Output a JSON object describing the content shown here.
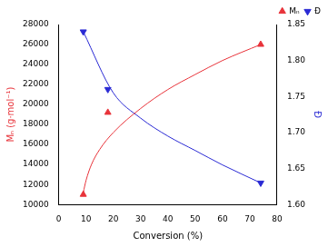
{
  "chart_data": {
    "type": "scatter",
    "x_label": "Conversion (%)",
    "y_label": "Mₙ (g·mol⁻¹)",
    "y2_label": "Đ",
    "xlim": [
      0,
      80
    ],
    "xticks": [
      0,
      10,
      20,
      30,
      40,
      50,
      60,
      70,
      80
    ],
    "ylim": [
      10000,
      28000
    ],
    "yticks": [
      10000,
      12000,
      14000,
      16000,
      18000,
      20000,
      22000,
      24000,
      26000,
      28000
    ],
    "y2lim": [
      1.6,
      1.85
    ],
    "y2ticks": [
      {
        "value": 1.6,
        "label": "1.60"
      },
      1.65,
      {
        "value": 1.7,
        "label": "1.70"
      },
      1.75,
      {
        "value": 1.8,
        "label": "1.80"
      },
      1.85
    ],
    "grid": false,
    "legend": "upper right",
    "series": [
      {
        "name": "Mₙ",
        "color": "#e8333a",
        "marker": "triangle_up",
        "axis": "y",
        "x": [
          9,
          18,
          74
        ],
        "values": [
          11000,
          19200,
          26000
        ],
        "curve": {
          "x": [
            9,
            10,
            12,
            15,
            20,
            30,
            40,
            50,
            60,
            74
          ],
          "values": [
            11200,
            12400,
            14000,
            15500,
            17200,
            19600,
            21500,
            23000,
            24400,
            26000
          ]
        }
      },
      {
        "name": "Đ",
        "color": "#2a2ad4",
        "marker": "triangle_down",
        "axis": "y2",
        "x": [
          9,
          18,
          74
        ],
        "values": [
          1.84,
          1.76,
          1.63
        ],
        "curve": {
          "x": [
            9,
            20,
            30,
            40,
            50,
            60,
            74
          ],
          "values": [
            1.84,
            1.755,
            1.72,
            1.695,
            1.675,
            1.655,
            1.63
          ]
        }
      }
    ]
  }
}
